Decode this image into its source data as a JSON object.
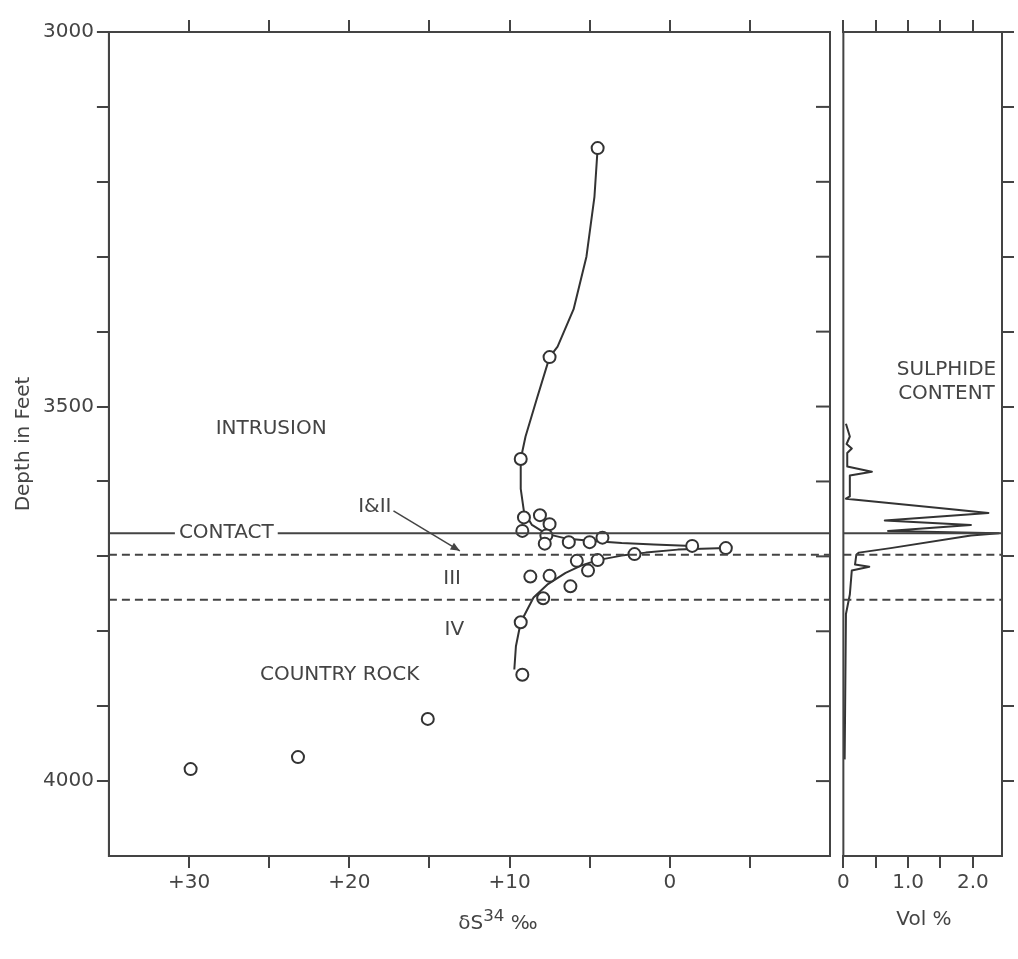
{
  "chart_data": [
    {
      "type": "scatter",
      "xlabel": "δS$^{34}$ ‰",
      "ylabel": "Depth in Feet",
      "xlim": [
        35,
        -10
      ],
      "xticks": [
        {
          "value": 30,
          "label": "+30"
        },
        {
          "value": 25,
          "label": null
        },
        {
          "value": 20,
          "label": "+20"
        },
        {
          "value": 15,
          "label": null
        },
        {
          "value": 10,
          "label": "+10"
        },
        {
          "value": 5,
          "label": null
        },
        0,
        {
          "value": -5,
          "label": null
        }
      ],
      "ylim": [
        4100,
        3000
      ],
      "yticks": [
        3000,
        {
          "value": 3100,
          "label": null
        },
        {
          "value": 3200,
          "label": null
        },
        {
          "value": 3300,
          "label": null
        },
        {
          "value": 3400,
          "label": null
        },
        3500,
        {
          "value": 3600,
          "label": null
        },
        {
          "value": 3700,
          "label": null
        },
        {
          "value": 3800,
          "label": null
        },
        {
          "value": 3900,
          "label": null
        },
        4000
      ],
      "series": [
        {
          "color": "#333333",
          "marker": "circle",
          "x": [
            4.5,
            7.5,
            9.3,
            9.1,
            8.1,
            7.5,
            9.2,
            7.7,
            7.8,
            6.3,
            5.0,
            4.2,
            -1.4,
            -3.5,
            2.2,
            4.5,
            5.8,
            5.1,
            7.5,
            8.7,
            6.2,
            7.9,
            9.3,
            9.2,
            15.1,
            23.2,
            29.9
          ],
          "values": [
            3155,
            3434,
            3570,
            3648,
            3645,
            3657,
            3666,
            3672,
            3683,
            3681,
            3681,
            3675,
            3686,
            3689,
            3697,
            3705,
            3706,
            3719,
            3726,
            3727,
            3740,
            3756,
            3788,
            3858,
            3917,
            3968,
            3984
          ]
        },
        {
          "type": "line",
          "color": "#333333",
          "x": [
            4.5,
            4.7,
            5.2,
            6.0,
            7.0,
            7.5,
            8.3,
            9.0,
            9.3,
            9.3,
            9.1,
            8.6,
            7.7,
            6.5,
            5.0,
            3.0,
            1.0,
            -1.4
          ],
          "values": [
            3155,
            3220,
            3300,
            3370,
            3420,
            3434,
            3490,
            3540,
            3570,
            3610,
            3640,
            3658,
            3670,
            3676,
            3679,
            3682,
            3684,
            3686
          ]
        },
        {
          "type": "line",
          "color": "#333333",
          "x": [
            9.7,
            9.6,
            9.3,
            8.5,
            7.6,
            6.5,
            5.5,
            4.5,
            3.0,
            1.5,
            -0.5,
            -3.5
          ],
          "values": [
            3851,
            3820,
            3788,
            3755,
            3737,
            3722,
            3712,
            3705,
            3699,
            3695,
            3691,
            3689
          ]
        }
      ],
      "ref_lines": [
        {
          "axis": "y",
          "value": 3669,
          "label": "CONTACT",
          "line_style": "solid"
        },
        {
          "axis": "y",
          "value": 3698,
          "line_style": "dashed"
        },
        {
          "axis": "y",
          "value": 3758,
          "line_style": "dashed"
        }
      ],
      "annotations": [
        "INTRUSION",
        {
          "text": "I&II",
          "x": 13.1,
          "y": 3698
        },
        "III",
        "IV",
        "COUNTRY ROCK"
      ]
    },
    {
      "type": "line",
      "xlabel": "Vol %",
      "xlim": [
        0,
        2.45
      ],
      "xticks": [
        0,
        {
          "value": 0.5,
          "label": null
        },
        {
          "value": 1,
          "label": "1.0"
        },
        {
          "value": 1.5,
          "label": null
        },
        {
          "value": 2,
          "label": "2.0"
        }
      ],
      "ylim": [
        4100,
        3000
      ],
      "yticks": [
        {
          "value": 3000,
          "label": null
        },
        {
          "value": 3100,
          "label": null
        },
        {
          "value": 3200,
          "label": null
        },
        {
          "value": 3300,
          "label": null
        },
        {
          "value": 3400,
          "label": null
        },
        {
          "value": 3500,
          "label": null
        },
        {
          "value": 3600,
          "label": null
        },
        {
          "value": 3700,
          "label": null
        },
        {
          "value": 3800,
          "label": null
        },
        {
          "value": 3900,
          "label": null
        },
        {
          "value": 4000,
          "label": null
        }
      ],
      "tick_labels": "x",
      "series": [
        {
          "color": "#333333",
          "x": [
            0.04,
            0.1,
            0.05,
            0.13,
            0.06,
            0.06,
            0.44,
            0.1,
            0.1,
            0.04,
            2.24,
            0.64,
            1.97,
            0.69,
            2.4,
            1.97,
            0.73,
            0.24,
            0.2,
            0.18,
            0.4,
            0.13,
            0.1,
            0.04,
            0.02
          ],
          "values": [
            3523,
            3540,
            3550,
            3556,
            3562,
            3580,
            3587,
            3592,
            3620,
            3623,
            3642,
            3652,
            3658,
            3666,
            3669,
            3672,
            3689,
            3695,
            3698,
            3711,
            3714,
            3719,
            3751,
            3777,
            3971
          ]
        }
      ],
      "ref_lines": [
        {
          "axis": "y",
          "value": 3669,
          "line_style": "solid"
        },
        {
          "axis": "y",
          "value": 3698,
          "line_style": "dashed"
        },
        {
          "axis": "y",
          "value": 3758,
          "line_style": "dashed"
        }
      ],
      "annotations": [
        "SULPHIDE CONTENT"
      ]
    }
  ]
}
